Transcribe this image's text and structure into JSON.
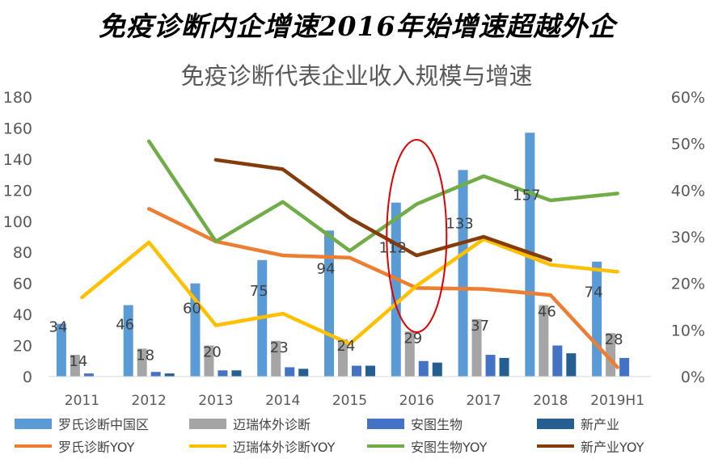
{
  "headline": "免疫诊断内企增速2016年始增速超越外企",
  "chart_data": {
    "type": "bar+line",
    "title": "免疫诊断代表企业收入规模与增速",
    "categories": [
      "2011",
      "2012",
      "2013",
      "2014",
      "2015",
      "2016",
      "2017",
      "2018",
      "2019H1"
    ],
    "y_left": {
      "min": 0,
      "max": 180,
      "ticks": [
        "0",
        "20",
        "40",
        "60",
        "80",
        "100",
        "120",
        "140",
        "160",
        "180"
      ]
    },
    "y_right": {
      "min": 0,
      "max": 0.6,
      "ticks": [
        "0%",
        "10%",
        "20%",
        "30%",
        "40%",
        "50%",
        "60%"
      ]
    },
    "bar_series": [
      {
        "name": "罗氏诊断中国区",
        "color": "#5B9BD5",
        "values": [
          34,
          46,
          60,
          75,
          94,
          112,
          133,
          157,
          74
        ]
      },
      {
        "name": "迈瑞体外诊断",
        "color": "#A5A5A5",
        "values": [
          14,
          18,
          20,
          23,
          24,
          29,
          37,
          46,
          28
        ]
      },
      {
        "name": "安图生物",
        "color": "#4472C4",
        "values": [
          2,
          3,
          4,
          6,
          7,
          10,
          14,
          20,
          12
        ]
      },
      {
        "name": "新产业",
        "color": "#255E91",
        "values": [
          0,
          2,
          4,
          5,
          7,
          9,
          12,
          15,
          0
        ]
      }
    ],
    "data_labels": [
      {
        "series": 0,
        "labels": [
          "34",
          "46",
          "60",
          "75",
          "94",
          "112",
          "133",
          "157",
          "74"
        ]
      },
      {
        "series": 1,
        "labels": [
          "14",
          "18",
          "20",
          "23",
          "24",
          "29",
          "37",
          "46",
          "28"
        ]
      }
    ],
    "line_series": [
      {
        "name": "罗氏诊断YOY",
        "color": "#ED7D31",
        "values": [
          null,
          0.36,
          0.29,
          0.26,
          0.255,
          0.19,
          0.188,
          0.175,
          0.02
        ]
      },
      {
        "name": "迈瑞体外诊断YOY",
        "color": "#FFC000",
        "values": [
          0.17,
          0.288,
          0.11,
          0.135,
          0.07,
          0.195,
          0.295,
          0.24,
          0.225
        ]
      },
      {
        "name": "安图生物YOY",
        "color": "#70AD47",
        "values": [
          null,
          0.505,
          0.29,
          0.375,
          0.27,
          0.37,
          0.43,
          0.378,
          0.393
        ]
      },
      {
        "name": "新产业YOY",
        "color": "#843C0C",
        "values": [
          null,
          null,
          0.465,
          0.445,
          0.34,
          0.26,
          0.3,
          0.25,
          null
        ]
      }
    ],
    "annotation": {
      "type": "ellipse",
      "category": "2016",
      "color": "#E00000"
    },
    "legend": [
      {
        "label": "罗氏诊断中国区",
        "kind": "bar",
        "color": "#5B9BD5"
      },
      {
        "label": "迈瑞体外诊断",
        "kind": "bar",
        "color": "#A5A5A5"
      },
      {
        "label": "安图生物",
        "kind": "bar",
        "color": "#4472C4"
      },
      {
        "label": "新产业",
        "kind": "bar",
        "color": "#255E91"
      },
      {
        "label": "罗氏诊断YOY",
        "kind": "line",
        "color": "#ED7D31"
      },
      {
        "label": "迈瑞体外诊断YOY",
        "kind": "line",
        "color": "#FFC000"
      },
      {
        "label": "安图生物YOY",
        "kind": "line",
        "color": "#70AD47"
      },
      {
        "label": "新产业YOY",
        "kind": "line",
        "color": "#843C0C"
      }
    ]
  }
}
